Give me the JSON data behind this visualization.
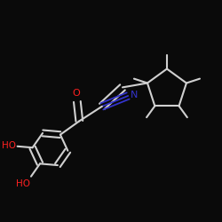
{
  "background": "#0a0a0a",
  "bond_color": "#d0d0d0",
  "O_color": "#ff2020",
  "N_color": "#3333cc",
  "OH_color": "#ff2020",
  "lw": 1.5,
  "dbo": 0.018,
  "figsize": [
    2.5,
    2.5
  ],
  "dpi": 100,
  "xlim": [
    0.0,
    1.0
  ],
  "ylim": [
    0.0,
    1.0
  ]
}
